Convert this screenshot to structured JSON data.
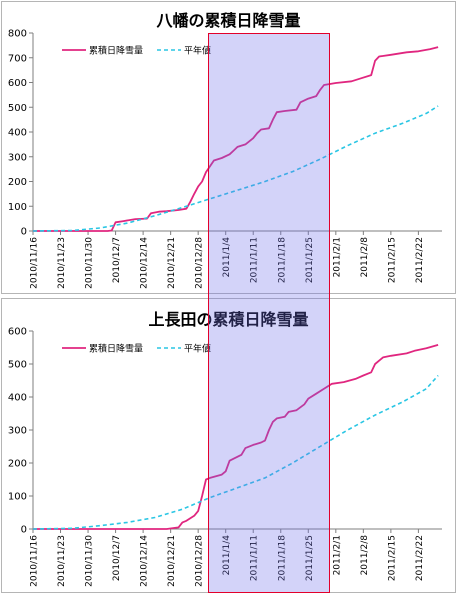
{
  "colors": {
    "accent_series": "#e0267f",
    "normal_series": "#2ac6e4",
    "highlight_fill": "#6e6eeb",
    "highlight_border": "#e3002b"
  },
  "highlight": {
    "from": "2010/12/30",
    "to": "2011/1/30"
  },
  "chart_data": [
    {
      "type": "line",
      "title": "八幡の累積日降雪量",
      "x_tick_labels": [
        "2010/11/16",
        "2010/11/23",
        "2010/11/30",
        "2010/12/7",
        "2010/12/14",
        "2010/12/21",
        "2010/12/28",
        "2011/1/4",
        "2011/1/11",
        "2011/1/18",
        "2011/1/25",
        "2011/2/1",
        "2011/2/8",
        "2011/2/15",
        "2011/2/22"
      ],
      "ylim": [
        0,
        800
      ],
      "y_ticks": [
        0,
        100,
        200,
        300,
        400,
        500,
        600,
        700,
        800
      ],
      "legend": "top-left",
      "grid": false,
      "series": [
        {
          "name": "累積日降雪量",
          "style": "solid",
          "points": [
            [
              "2010/11/16",
              0
            ],
            [
              "2010/12/5",
              0
            ],
            [
              "2010/12/6",
              2
            ],
            [
              "2010/12/7",
              35
            ],
            [
              "2010/12/9",
              40
            ],
            [
              "2010/12/12",
              48
            ],
            [
              "2010/12/15",
              50
            ],
            [
              "2010/12/16",
              72
            ],
            [
              "2010/12/18",
              78
            ],
            [
              "2010/12/20",
              80
            ],
            [
              "2010/12/23",
              85
            ],
            [
              "2010/12/25",
              90
            ],
            [
              "2010/12/26",
              118
            ],
            [
              "2010/12/27",
              150
            ],
            [
              "2010/12/28",
              180
            ],
            [
              "2010/12/29",
              200
            ],
            [
              "2010/12/30",
              238
            ],
            [
              "2010/12/31",
              262
            ],
            [
              "2011/1/1",
              285
            ],
            [
              "2011/1/3",
              295
            ],
            [
              "2011/1/5",
              310
            ],
            [
              "2011/1/6",
              325
            ],
            [
              "2011/1/7",
              340
            ],
            [
              "2011/1/9",
              350
            ],
            [
              "2011/1/11",
              375
            ],
            [
              "2011/1/12",
              395
            ],
            [
              "2011/1/13",
              410
            ],
            [
              "2011/1/15",
              415
            ],
            [
              "2011/1/16",
              450
            ],
            [
              "2011/1/17",
              480
            ],
            [
              "2011/1/19",
              485
            ],
            [
              "2011/1/22",
              490
            ],
            [
              "2011/1/23",
              520
            ],
            [
              "2011/1/25",
              535
            ],
            [
              "2011/1/27",
              545
            ],
            [
              "2011/1/28",
              570
            ],
            [
              "2011/1/29",
              590
            ],
            [
              "2011/2/1",
              598
            ],
            [
              "2011/2/5",
              605
            ],
            [
              "2011/2/7",
              615
            ],
            [
              "2011/2/10",
              630
            ],
            [
              "2011/2/11",
              688
            ],
            [
              "2011/2/12",
              705
            ],
            [
              "2011/2/15",
              712
            ],
            [
              "2011/2/19",
              722
            ],
            [
              "2011/2/22",
              726
            ],
            [
              "2011/2/25",
              735
            ],
            [
              "2011/2/27",
              743
            ]
          ]
        },
        {
          "name": "平年値",
          "style": "dashed",
          "points": [
            [
              "2010/11/16",
              0
            ],
            [
              "2010/11/26",
              2
            ],
            [
              "2010/12/3",
              12
            ],
            [
              "2010/12/10",
              32
            ],
            [
              "2010/12/17",
              62
            ],
            [
              "2010/12/24",
              95
            ],
            [
              "2010/12/31",
              130
            ],
            [
              "2011/1/7",
              165
            ],
            [
              "2011/1/14",
              200
            ],
            [
              "2011/1/21",
              240
            ],
            [
              "2011/1/28",
              290
            ],
            [
              "2011/2/4",
              345
            ],
            [
              "2011/2/11",
              395
            ],
            [
              "2011/2/18",
              435
            ],
            [
              "2011/2/24",
              475
            ],
            [
              "2011/2/27",
              505
            ]
          ]
        }
      ]
    },
    {
      "type": "line",
      "title": "上長田の累積日降雪量",
      "x_tick_labels": [
        "2010/11/16",
        "2010/11/23",
        "2010/11/30",
        "2010/12/7",
        "2010/12/14",
        "2010/12/21",
        "2010/12/28",
        "2011/1/4",
        "2011/1/11",
        "2011/1/18",
        "2011/1/25",
        "2011/2/1",
        "2011/2/8",
        "2011/2/15",
        "2011/2/22"
      ],
      "ylim": [
        0,
        600
      ],
      "y_ticks": [
        0,
        100,
        200,
        300,
        400,
        500,
        600
      ],
      "legend": "top-left",
      "grid": false,
      "series": [
        {
          "name": "累積日降雪量",
          "style": "solid",
          "points": [
            [
              "2010/11/16",
              0
            ],
            [
              "2010/12/20",
              0
            ],
            [
              "2010/12/23",
              5
            ],
            [
              "2010/12/24",
              20
            ],
            [
              "2010/12/25",
              25
            ],
            [
              "2010/12/27",
              40
            ],
            [
              "2010/12/28",
              55
            ],
            [
              "2010/12/29",
              100
            ],
            [
              "2010/12/30",
              150
            ],
            [
              "2010/12/31",
              155
            ],
            [
              "2011/1/3",
              165
            ],
            [
              "2011/1/4",
              175
            ],
            [
              "2011/1/5",
              207
            ],
            [
              "2011/1/6",
              213
            ],
            [
              "2011/1/8",
              225
            ],
            [
              "2011/1/9",
              245
            ],
            [
              "2011/1/11",
              255
            ],
            [
              "2011/1/13",
              262
            ],
            [
              "2011/1/14",
              268
            ],
            [
              "2011/1/15",
              300
            ],
            [
              "2011/1/16",
              325
            ],
            [
              "2011/1/17",
              335
            ],
            [
              "2011/1/19",
              340
            ],
            [
              "2011/1/20",
              355
            ],
            [
              "2011/1/22",
              360
            ],
            [
              "2011/1/24",
              378
            ],
            [
              "2011/1/25",
              395
            ],
            [
              "2011/1/27",
              410
            ],
            [
              "2011/1/29",
              425
            ],
            [
              "2011/1/31",
              440
            ],
            [
              "2011/2/3",
              445
            ],
            [
              "2011/2/6",
              455
            ],
            [
              "2011/2/8",
              465
            ],
            [
              "2011/2/10",
              475
            ],
            [
              "2011/2/11",
              500
            ],
            [
              "2011/2/13",
              520
            ],
            [
              "2011/2/15",
              525
            ],
            [
              "2011/2/19",
              532
            ],
            [
              "2011/2/21",
              540
            ],
            [
              "2011/2/24",
              548
            ],
            [
              "2011/2/27",
              558
            ]
          ]
        },
        {
          "name": "平年値",
          "style": "dashed",
          "points": [
            [
              "2010/11/16",
              0
            ],
            [
              "2010/11/26",
              2
            ],
            [
              "2010/12/3",
              10
            ],
            [
              "2010/12/10",
              20
            ],
            [
              "2010/12/17",
              35
            ],
            [
              "2010/12/24",
              60
            ],
            [
              "2010/12/31",
              95
            ],
            [
              "2011/1/7",
              125
            ],
            [
              "2011/1/14",
              155
            ],
            [
              "2011/1/21",
              200
            ],
            [
              "2011/1/28",
              250
            ],
            [
              "2011/2/4",
              300
            ],
            [
              "2011/2/11",
              345
            ],
            [
              "2011/2/18",
              385
            ],
            [
              "2011/2/24",
              425
            ],
            [
              "2011/2/27",
              465
            ]
          ]
        }
      ]
    }
  ]
}
